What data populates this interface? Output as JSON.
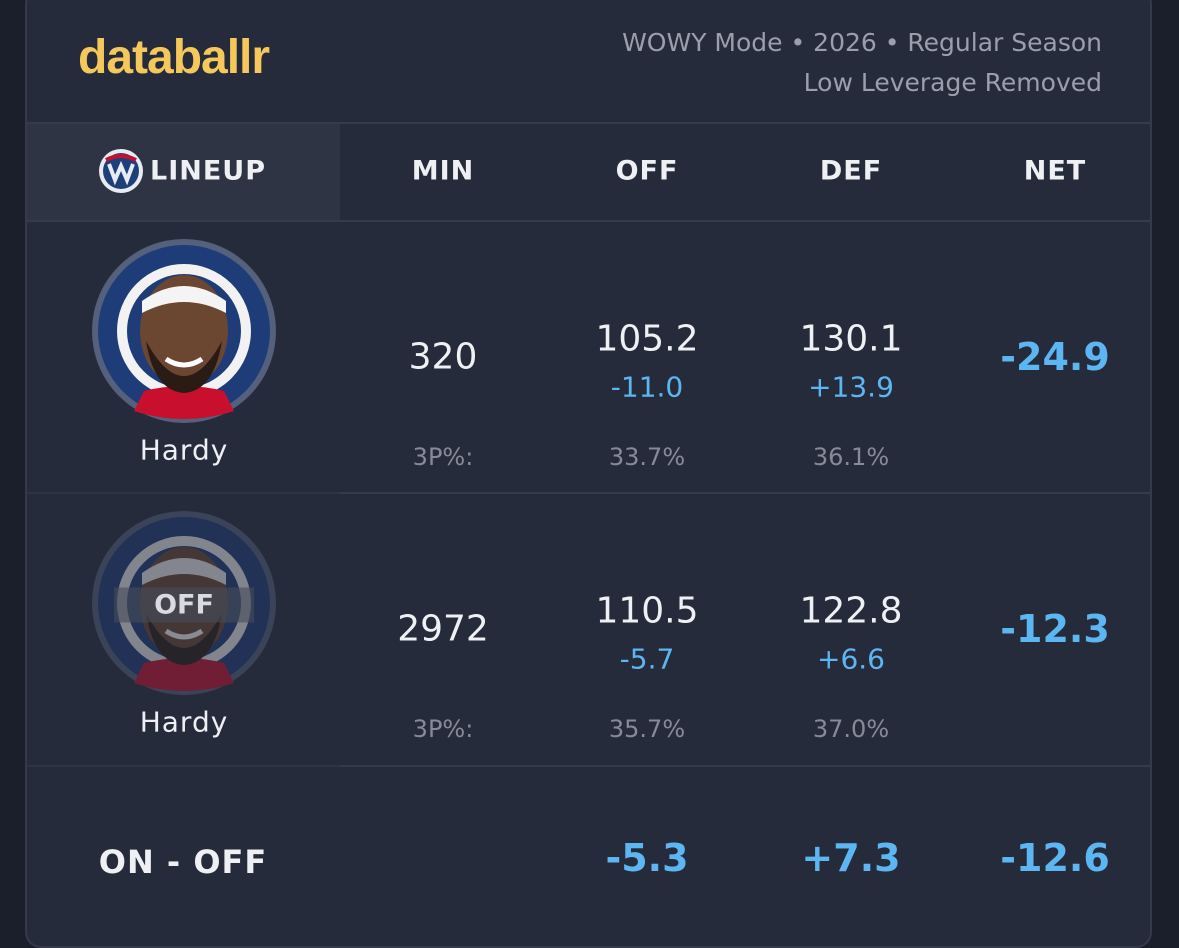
{
  "header": {
    "brand": "databallr",
    "subtitle": [
      "WOWY Mode • 2026 • Regular Season",
      "Low Leverage Removed"
    ]
  },
  "table": {
    "columns": [
      "LINEUP",
      "MIN",
      "OFF",
      "DEF",
      "NET"
    ],
    "rows": [
      {
        "name": "Hardy",
        "badge": null,
        "min": "320",
        "off": "105.2",
        "off_diff": "-11.0",
        "def": "130.1",
        "def_diff": "+13.9",
        "net": "-24.9",
        "stat_label": "3P%:",
        "off_stat": "33.7%",
        "def_stat": "36.1%"
      },
      {
        "name": "Hardy",
        "badge": "OFF",
        "min": "2972",
        "off": "110.5",
        "off_diff": "-5.7",
        "def": "122.8",
        "def_diff": "+6.6",
        "net": "-12.3",
        "stat_label": "3P%:",
        "off_stat": "35.7%",
        "def_stat": "37.0%"
      }
    ],
    "summary": {
      "label": "ON - OFF",
      "off": "-5.3",
      "def": "+7.3",
      "net": "-12.6"
    }
  }
}
